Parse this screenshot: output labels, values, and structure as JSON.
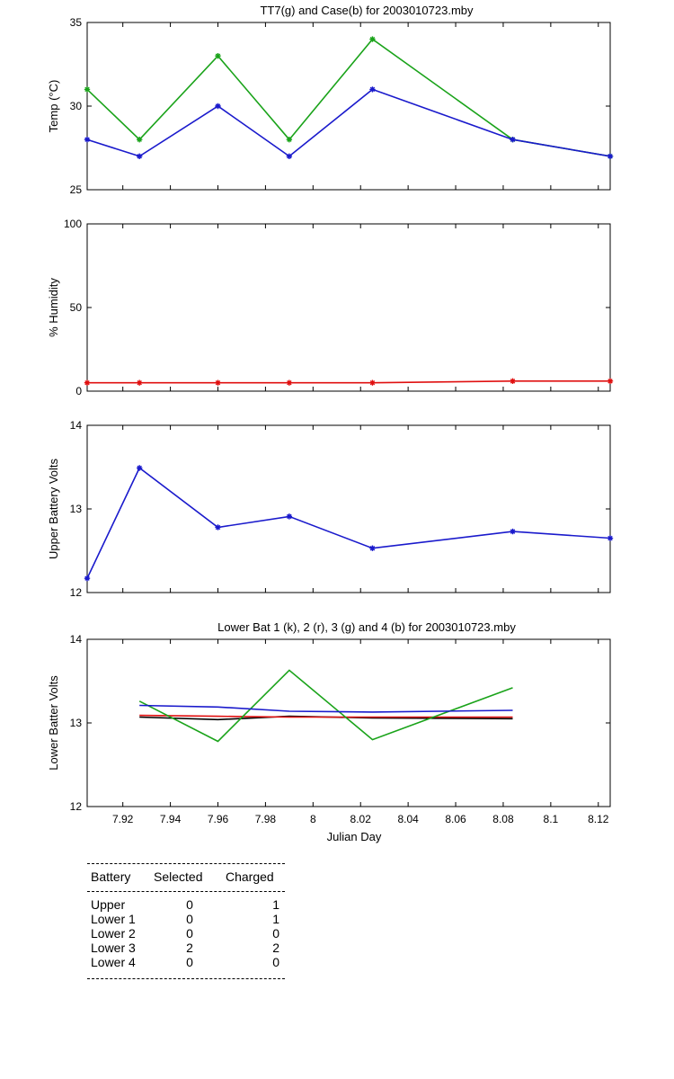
{
  "chart_data": [
    {
      "type": "line",
      "title": "TT7(g) and Case(b) for 2003010723.mby",
      "xlabel": "",
      "ylabel": "Temp  (°C)",
      "xlim": [
        7.905,
        8.125
      ],
      "ylim": [
        25,
        35
      ],
      "yticks": [
        25,
        30,
        35
      ],
      "series": [
        {
          "color": "#1aa31a",
          "x": [
            7.905,
            7.927,
            7.96,
            7.99,
            8.025,
            8.084,
            8.125
          ],
          "y": [
            31,
            28,
            33,
            28,
            34,
            28,
            27
          ],
          "markers": true
        },
        {
          "color": "#1a1acc",
          "x": [
            7.905,
            7.927,
            7.96,
            7.99,
            8.025,
            8.084,
            8.125
          ],
          "y": [
            28,
            27,
            30,
            27,
            31,
            28,
            27
          ],
          "markers": true
        }
      ]
    },
    {
      "type": "line",
      "title": "",
      "xlabel": "",
      "ylabel": "% Humidity",
      "xlim": [
        7.905,
        8.125
      ],
      "ylim": [
        0,
        100
      ],
      "yticks": [
        0,
        50,
        100
      ],
      "series": [
        {
          "color": "#e01010",
          "x": [
            7.905,
            7.927,
            7.96,
            7.99,
            8.025,
            8.084,
            8.125
          ],
          "y": [
            5,
            5,
            5,
            5,
            5,
            6,
            6
          ],
          "markers": true
        }
      ]
    },
    {
      "type": "line",
      "title": "",
      "xlabel": "",
      "ylabel": "Upper Battery Volts",
      "xlim": [
        7.905,
        8.125
      ],
      "ylim": [
        12,
        14
      ],
      "yticks": [
        12,
        13,
        14
      ],
      "series": [
        {
          "color": "#1a1acc",
          "x": [
            7.905,
            7.927,
            7.96,
            7.99,
            8.025,
            8.084,
            8.125
          ],
          "y": [
            12.17,
            13.49,
            12.78,
            12.91,
            12.53,
            12.73,
            12.65
          ],
          "markers": true
        }
      ]
    },
    {
      "type": "line",
      "title": "Lower Bat 1 (k), 2 (r), 3 (g) and 4 (b) for 2003010723.mby",
      "xlabel": "Julian Day",
      "ylabel": "Lower Batter Volts",
      "xlim": [
        7.905,
        8.125
      ],
      "ylim": [
        12,
        14
      ],
      "yticks": [
        12,
        13,
        14
      ],
      "xticks": [
        7.92,
        7.94,
        7.96,
        7.98,
        8,
        8.02,
        8.04,
        8.06,
        8.08,
        8.1,
        8.12
      ],
      "xticklabels": [
        "7.92",
        "7.94",
        "7.96",
        "7.98",
        "8",
        "8.02",
        "8.04",
        "8.06",
        "8.08",
        "8.1",
        "8.12"
      ],
      "series": [
        {
          "color": "#000000",
          "x": [
            7.927,
            7.96,
            7.99,
            8.025,
            8.084
          ],
          "y": [
            13.07,
            13.04,
            13.08,
            13.06,
            13.05
          ],
          "markers": false
        },
        {
          "color": "#e01010",
          "x": [
            7.927,
            7.96,
            7.99,
            8.025,
            8.084
          ],
          "y": [
            13.09,
            13.08,
            13.07,
            13.07,
            13.07
          ],
          "markers": false
        },
        {
          "color": "#1aa31a",
          "x": [
            7.927,
            7.96,
            7.99,
            8.025,
            8.084
          ],
          "y": [
            13.26,
            12.78,
            13.63,
            12.8,
            13.42
          ],
          "markers": false
        },
        {
          "color": "#1a1acc",
          "x": [
            7.927,
            7.96,
            7.99,
            8.025,
            8.084
          ],
          "y": [
            13.21,
            13.19,
            13.14,
            13.13,
            13.15
          ],
          "markers": false
        }
      ]
    }
  ],
  "summary": {
    "headers": [
      "Battery",
      "Selected",
      "Charged"
    ],
    "rows": [
      {
        "battery": "Upper",
        "selected": "0",
        "charged": "1"
      },
      {
        "battery": "Lower 1",
        "selected": "0",
        "charged": "1"
      },
      {
        "battery": "Lower 2",
        "selected": "0",
        "charged": "0"
      },
      {
        "battery": "Lower 3",
        "selected": "2",
        "charged": "2"
      },
      {
        "battery": "Lower 4",
        "selected": "0",
        "charged": "0"
      }
    ]
  }
}
